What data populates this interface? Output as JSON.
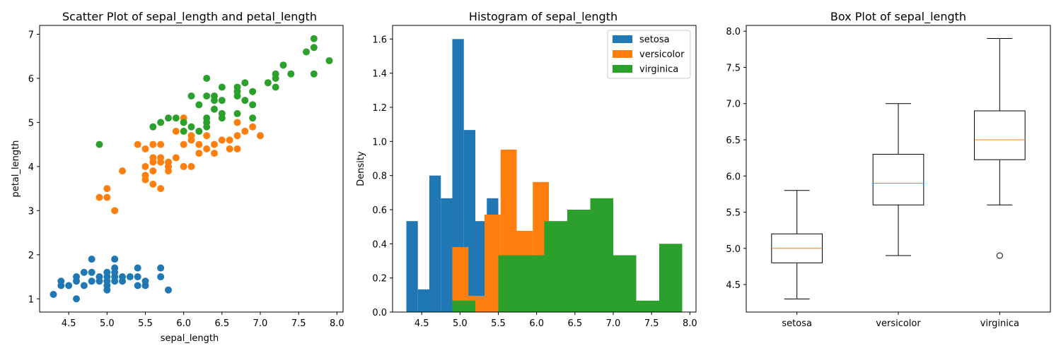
{
  "colors": {
    "setosa": "#1f77b4",
    "versicolor": "#ff7f0e",
    "virginica": "#2ca02c",
    "median": "#ff7f0e"
  },
  "chart_data": [
    {
      "type": "scatter",
      "title": "Scatter Plot of sepal_length and petal_length",
      "xlabel": "sepal_length",
      "ylabel": "petal_length",
      "xlim": [
        4.12,
        8.08
      ],
      "ylim": [
        0.7,
        7.2
      ],
      "xticks": [
        "4.5",
        "5.0",
        "5.5",
        "6.0",
        "6.5",
        "7.0",
        "7.5",
        "8.0"
      ],
      "yticks": [
        "1",
        "2",
        "3",
        "4",
        "5",
        "6",
        "7"
      ],
      "series": [
        {
          "color": "#1f77b4",
          "points": [
            [
              4.3,
              1.1
            ],
            [
              4.4,
              1.3
            ],
            [
              4.4,
              1.4
            ],
            [
              4.5,
              1.3
            ],
            [
              4.6,
              1.0
            ],
            [
              4.6,
              1.4
            ],
            [
              4.6,
              1.5
            ],
            [
              4.7,
              1.3
            ],
            [
              4.7,
              1.6
            ],
            [
              4.8,
              1.4
            ],
            [
              4.8,
              1.6
            ],
            [
              4.8,
              1.9
            ],
            [
              4.9,
              1.4
            ],
            [
              4.9,
              1.5
            ],
            [
              5.0,
              1.2
            ],
            [
              5.0,
              1.3
            ],
            [
              5.0,
              1.4
            ],
            [
              5.0,
              1.5
            ],
            [
              5.0,
              1.6
            ],
            [
              5.1,
              1.4
            ],
            [
              5.1,
              1.5
            ],
            [
              5.1,
              1.6
            ],
            [
              5.1,
              1.7
            ],
            [
              5.1,
              1.9
            ],
            [
              5.2,
              1.4
            ],
            [
              5.2,
              1.5
            ],
            [
              5.3,
              1.5
            ],
            [
              5.4,
              1.3
            ],
            [
              5.4,
              1.5
            ],
            [
              5.4,
              1.7
            ],
            [
              5.5,
              1.3
            ],
            [
              5.5,
              1.4
            ],
            [
              5.7,
              1.5
            ],
            [
              5.7,
              1.7
            ],
            [
              5.8,
              1.2
            ]
          ]
        },
        {
          "color": "#ff7f0e",
          "points": [
            [
              4.9,
              3.3
            ],
            [
              5.0,
              3.3
            ],
            [
              5.0,
              3.5
            ],
            [
              5.1,
              3.0
            ],
            [
              5.2,
              3.9
            ],
            [
              5.4,
              4.5
            ],
            [
              5.5,
              3.7
            ],
            [
              5.5,
              3.8
            ],
            [
              5.5,
              4.0
            ],
            [
              5.5,
              4.4
            ],
            [
              5.6,
              3.6
            ],
            [
              5.6,
              3.9
            ],
            [
              5.6,
              4.1
            ],
            [
              5.6,
              4.2
            ],
            [
              5.6,
              4.5
            ],
            [
              5.7,
              3.5
            ],
            [
              5.7,
              4.1
            ],
            [
              5.7,
              4.2
            ],
            [
              5.7,
              4.5
            ],
            [
              5.8,
              3.9
            ],
            [
              5.8,
              4.0
            ],
            [
              5.8,
              4.1
            ],
            [
              5.9,
              4.2
            ],
            [
              5.9,
              4.8
            ],
            [
              6.0,
              4.0
            ],
            [
              6.0,
              4.5
            ],
            [
              6.0,
              5.1
            ],
            [
              6.1,
              4.0
            ],
            [
              6.1,
              4.6
            ],
            [
              6.1,
              4.7
            ],
            [
              6.2,
              4.3
            ],
            [
              6.2,
              4.5
            ],
            [
              6.3,
              4.4
            ],
            [
              6.3,
              4.7
            ],
            [
              6.4,
              4.3
            ],
            [
              6.4,
              4.5
            ],
            [
              6.5,
              4.6
            ],
            [
              6.6,
              4.4
            ],
            [
              6.6,
              4.6
            ],
            [
              6.7,
              4.4
            ],
            [
              6.7,
              4.7
            ],
            [
              6.7,
              5.0
            ],
            [
              6.8,
              4.8
            ],
            [
              6.9,
              4.9
            ],
            [
              7.0,
              4.7
            ]
          ]
        },
        {
          "color": "#2ca02c",
          "points": [
            [
              4.9,
              4.5
            ],
            [
              5.6,
              4.9
            ],
            [
              5.7,
              5.0
            ],
            [
              5.8,
              5.1
            ],
            [
              5.9,
              5.1
            ],
            [
              6.0,
              4.8
            ],
            [
              6.0,
              5.0
            ],
            [
              6.1,
              4.9
            ],
            [
              6.1,
              5.6
            ],
            [
              6.2,
              4.8
            ],
            [
              6.2,
              5.4
            ],
            [
              6.3,
              4.9
            ],
            [
              6.3,
              5.0
            ],
            [
              6.3,
              5.1
            ],
            [
              6.3,
              5.6
            ],
            [
              6.3,
              6.0
            ],
            [
              6.4,
              5.3
            ],
            [
              6.4,
              5.5
            ],
            [
              6.4,
              5.6
            ],
            [
              6.5,
              5.1
            ],
            [
              6.5,
              5.2
            ],
            [
              6.5,
              5.5
            ],
            [
              6.5,
              5.8
            ],
            [
              6.7,
              5.2
            ],
            [
              6.7,
              5.6
            ],
            [
              6.7,
              5.7
            ],
            [
              6.7,
              5.8
            ],
            [
              6.8,
              5.5
            ],
            [
              6.8,
              5.9
            ],
            [
              6.9,
              5.1
            ],
            [
              6.9,
              5.4
            ],
            [
              6.9,
              5.7
            ],
            [
              7.1,
              5.9
            ],
            [
              7.2,
              5.8
            ],
            [
              7.2,
              6.0
            ],
            [
              7.2,
              6.1
            ],
            [
              7.3,
              6.3
            ],
            [
              7.4,
              6.1
            ],
            [
              7.6,
              6.6
            ],
            [
              7.7,
              6.1
            ],
            [
              7.7,
              6.7
            ],
            [
              7.7,
              6.9
            ],
            [
              7.9,
              6.4
            ]
          ]
        }
      ]
    },
    {
      "type": "bar",
      "title": "Histogram of sepal_length",
      "ylabel": "Density",
      "xlim": [
        4.12,
        8.08
      ],
      "ylim": [
        0,
        1.68
      ],
      "xticks": [
        "4.5",
        "5.0",
        "5.5",
        "6.0",
        "6.5",
        "7.0",
        "7.5",
        "8.0"
      ],
      "yticks": [
        "0.0",
        "0.2",
        "0.4",
        "0.6",
        "0.8",
        "1.0",
        "1.2",
        "1.4",
        "1.6"
      ],
      "legend": {
        "position": "top-right",
        "entries": [
          "setosa",
          "versicolor",
          "virginica"
        ]
      },
      "series": [
        {
          "name": "setosa",
          "color": "#1f77b4",
          "edges": [
            4.3,
            4.45,
            4.6,
            4.75,
            4.9,
            5.05,
            5.2,
            5.35,
            5.5,
            5.65,
            5.8
          ],
          "values": [
            0.533,
            0.133,
            0.8,
            0.667,
            1.6,
            1.067,
            0.533,
            0.667,
            0.0,
            0.0
          ]
        },
        {
          "name": "versicolor",
          "color": "#ff7f0e",
          "edges": [
            4.9,
            5.11,
            5.32,
            5.53,
            5.74,
            5.95,
            6.16,
            6.37,
            6.58,
            6.79,
            7.0
          ],
          "values": [
            0.381,
            0.095,
            0.571,
            0.952,
            0.476,
            0.762,
            0.0,
            0.0,
            0.0,
            0.0
          ]
        },
        {
          "name": "virginica",
          "color": "#2ca02c",
          "edges": [
            4.9,
            5.2,
            5.5,
            5.8,
            6.1,
            6.4,
            6.7,
            7.0,
            7.3,
            7.6,
            7.9
          ],
          "values": [
            0.067,
            0.0,
            0.333,
            0.333,
            0.533,
            0.6,
            0.667,
            0.333,
            0.067,
            0.4
          ]
        }
      ]
    },
    {
      "type": "box",
      "title": "Box Plot of sepal_length",
      "xlim": [
        0.5,
        3.5
      ],
      "ylim": [
        4.12,
        8.08
      ],
      "yticks": [
        "4.5",
        "5.0",
        "5.5",
        "6.0",
        "6.5",
        "7.0",
        "7.5",
        "8.0"
      ],
      "categories": [
        "setosa",
        "versicolor",
        "virginica"
      ],
      "boxes": [
        {
          "whislo": 4.3,
          "q1": 4.8,
          "med": 5.0,
          "q3": 5.2,
          "whishi": 5.8,
          "fliers": []
        },
        {
          "whislo": 4.9,
          "q1": 5.6,
          "med": 5.9,
          "q3": 6.3,
          "whishi": 7.0,
          "fliers": []
        },
        {
          "whislo": 5.6,
          "q1": 6.225,
          "med": 6.5,
          "q3": 6.9,
          "whishi": 7.9,
          "fliers": [
            4.9
          ]
        }
      ]
    }
  ]
}
